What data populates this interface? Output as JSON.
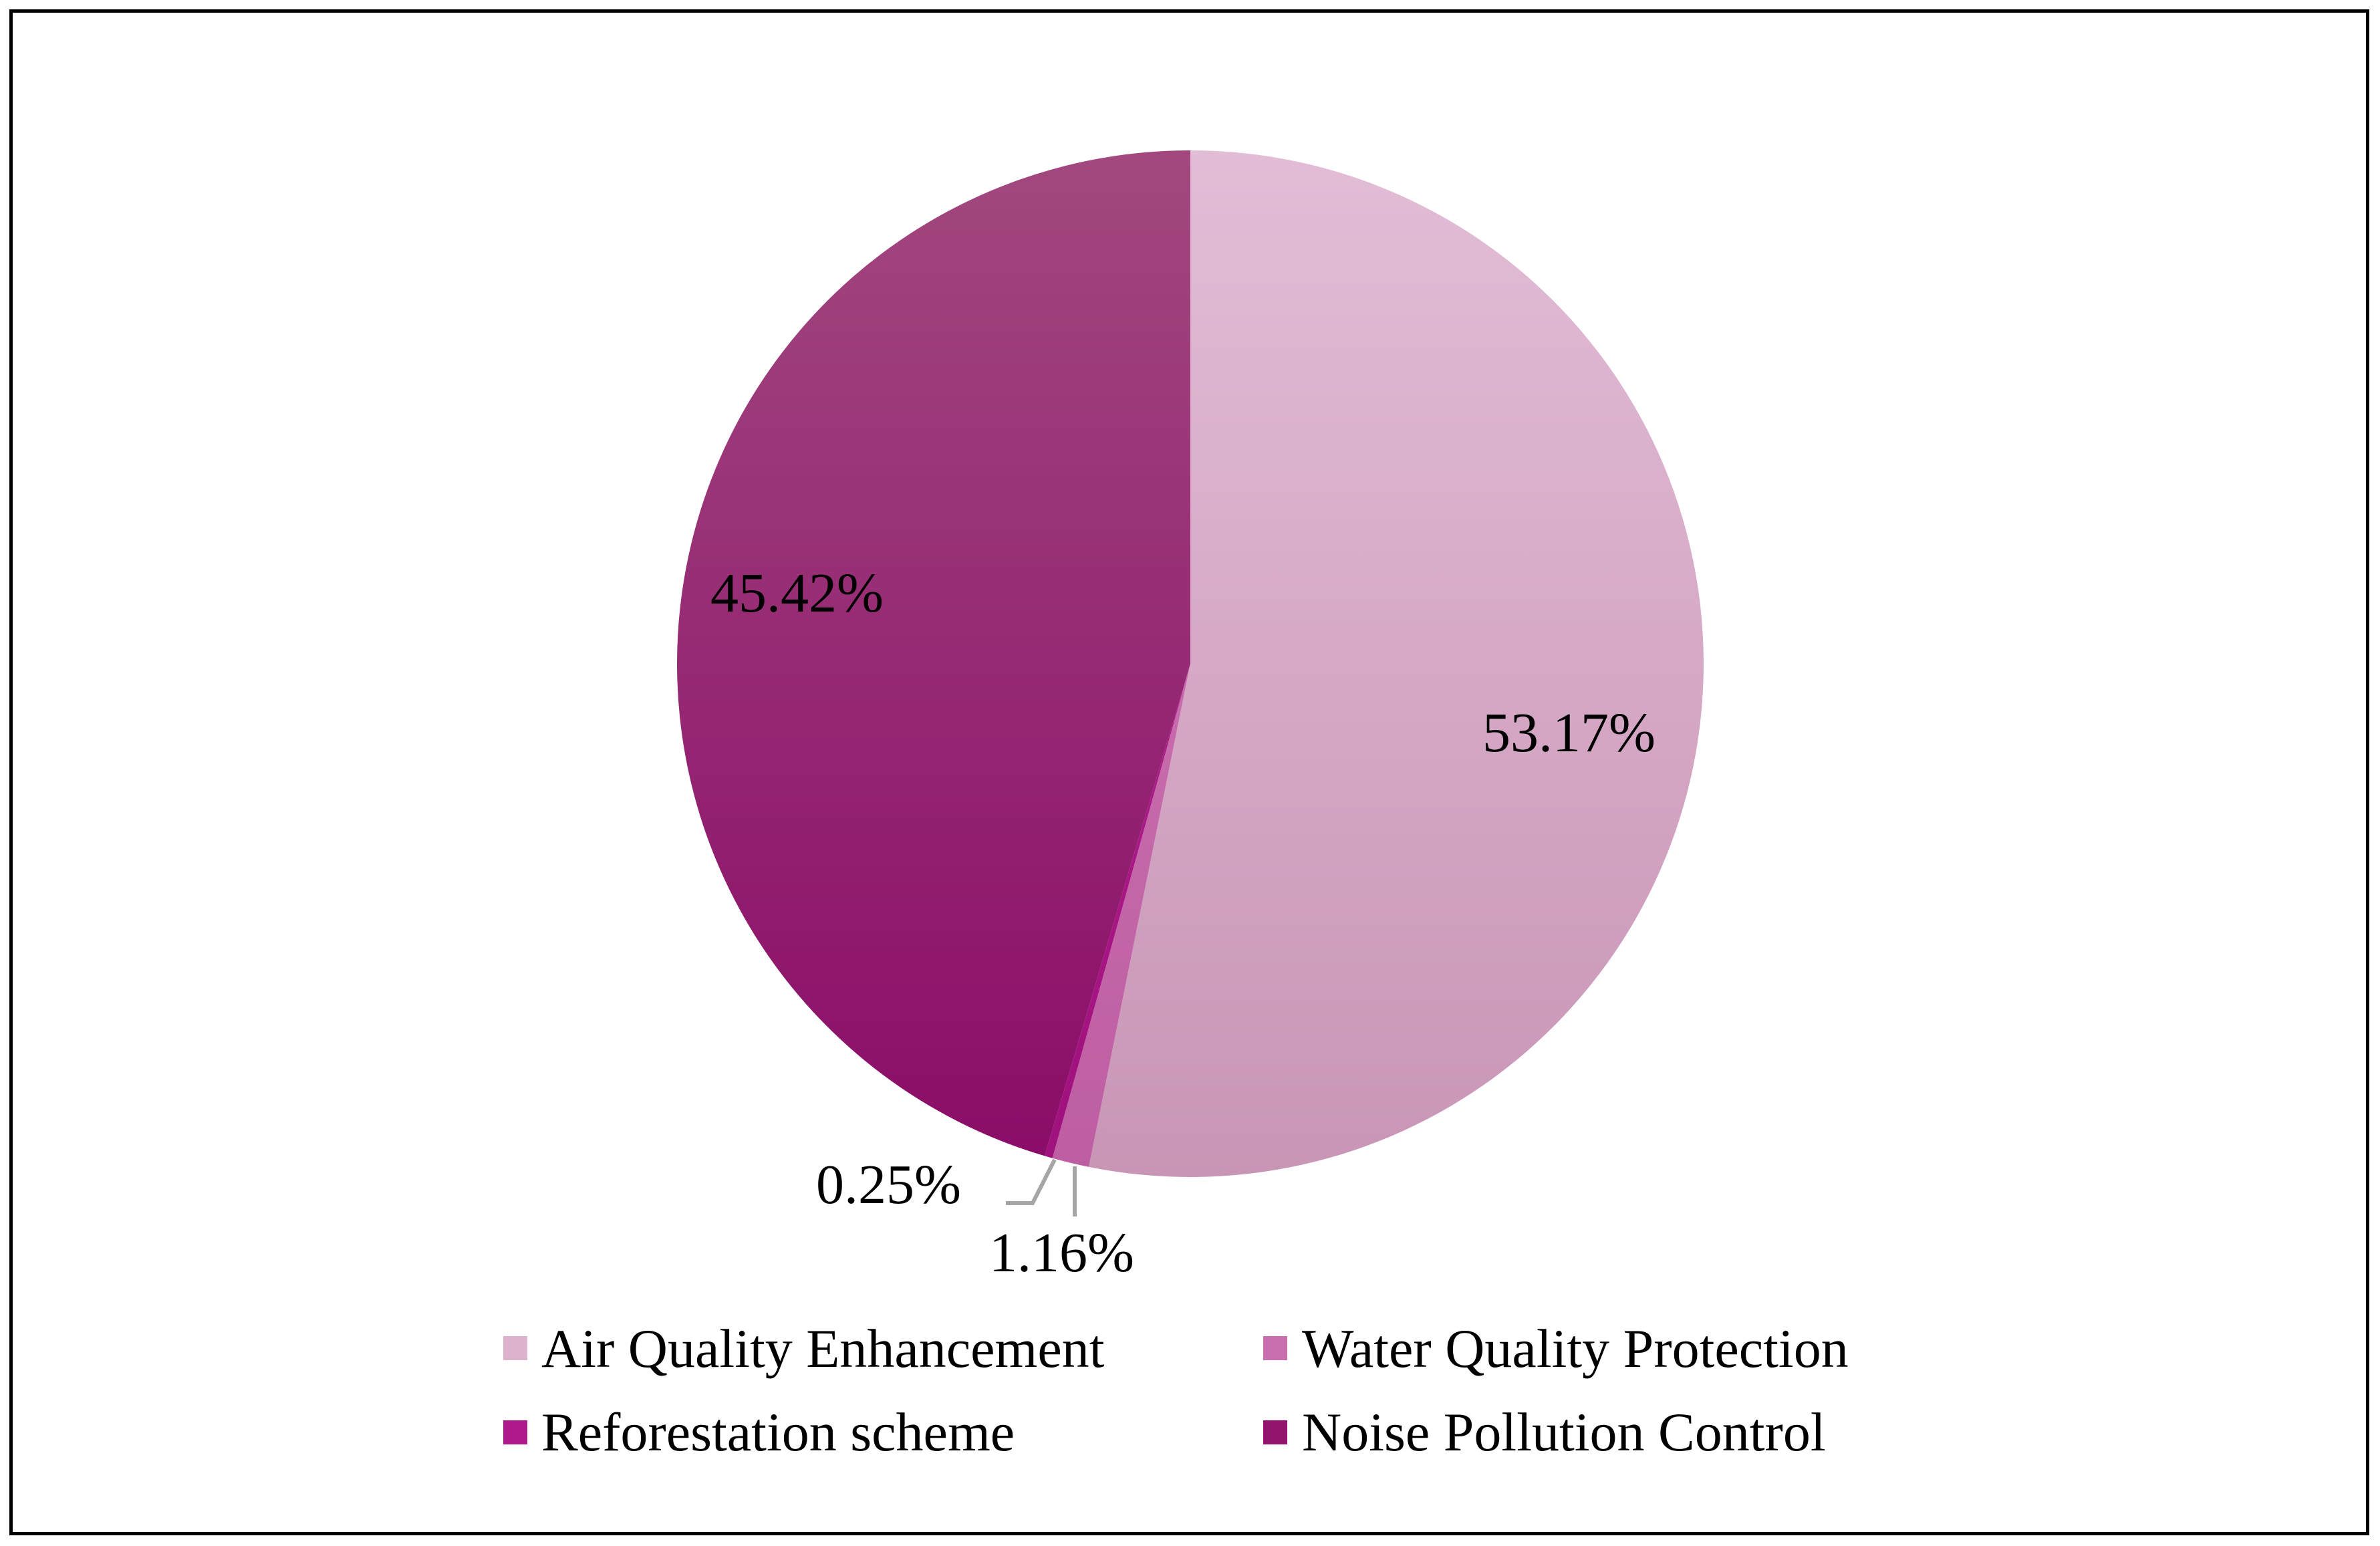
{
  "chart_data": {
    "type": "pie",
    "title": "",
    "categories": [
      "Air Quality Enhancement",
      "Water Quality Protection",
      "Reforestation scheme",
      "Noise Pollution Control"
    ],
    "values": [
      53.17,
      1.16,
      0.25,
      45.42
    ],
    "data_labels": [
      "53.17%",
      "1.16%",
      "0.25%",
      "45.42%"
    ],
    "colors": [
      "#dcb2cd",
      "#c86eaf",
      "#b0198a",
      "#93136f"
    ],
    "gradient_top": [
      "#e2bdd6",
      "#d27bb7",
      "#bf2398",
      "#a2487f"
    ],
    "gradient_bottom": [
      "#c995b6",
      "#bd5ea2",
      "#9f117d",
      "#8a0b68"
    ],
    "start_angle_deg": 0,
    "direction": "clockwise",
    "legend_position": "bottom"
  }
}
